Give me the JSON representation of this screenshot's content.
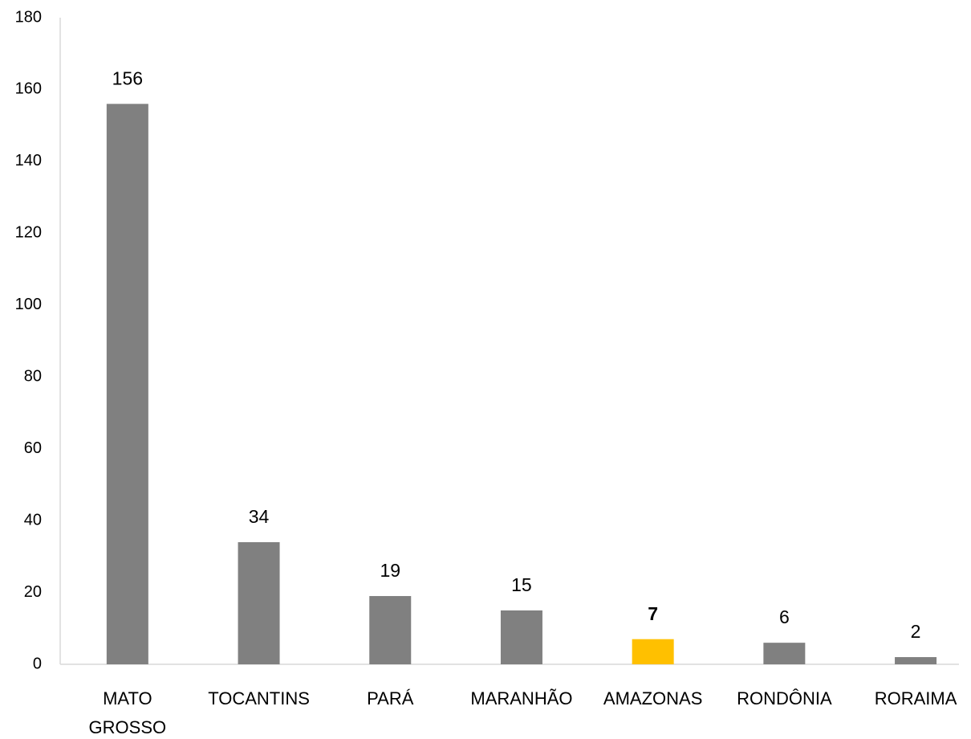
{
  "chart_data": {
    "type": "bar",
    "categories": [
      "MATO GROSSO",
      "TOCANTINS",
      "PARÁ",
      "MARANHÃO",
      "AMAZONAS",
      "RONDÔNIA",
      "RORAIMA"
    ],
    "values": [
      156,
      34,
      19,
      15,
      7,
      6,
      2
    ],
    "colors": [
      "#808080",
      "#808080",
      "#808080",
      "#808080",
      "#ffc000",
      "#808080",
      "#808080"
    ],
    "value_label_bold": [
      false,
      false,
      false,
      false,
      true,
      false,
      false
    ],
    "ylim": [
      0,
      180
    ],
    "yticks": [
      0,
      20,
      40,
      60,
      80,
      100,
      120,
      140,
      160,
      180
    ],
    "grid": false
  }
}
